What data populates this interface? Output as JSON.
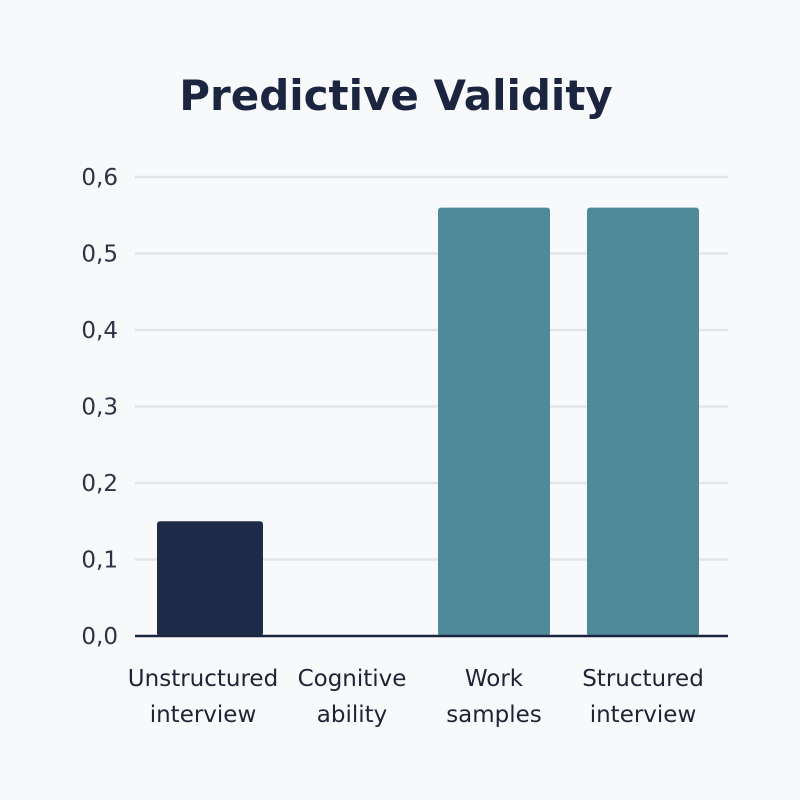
{
  "chart_data": {
    "type": "bar",
    "title": "Predictive Validity",
    "xlabel": "",
    "ylabel": "",
    "ylim": [
      0,
      0.6
    ],
    "yticks": [
      "0,0",
      "0,1",
      "0,2",
      "0,3",
      "0,4",
      "0,5",
      "0,6"
    ],
    "grid": true,
    "categories": [
      [
        "Unstructured",
        "interview"
      ],
      [
        "Cognitive",
        "ability"
      ],
      [
        "Work",
        "samples"
      ],
      [
        "Structured",
        "interview"
      ]
    ],
    "values": [
      0.15,
      0,
      0.56,
      0.56
    ],
    "colors": [
      "#1e2b48",
      "#4f8a9b",
      "#4f8a9b",
      "#4f8a9b"
    ],
    "grid_color": "#e3e5ea",
    "axis_color": "#1b2540"
  }
}
